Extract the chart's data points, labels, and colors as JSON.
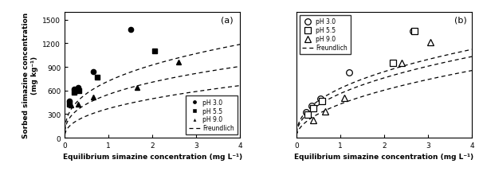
{
  "panel_a": {
    "pH3_x": [
      0.1,
      0.22,
      0.3,
      0.65,
      1.5
    ],
    "pH3_y": [
      470,
      620,
      640,
      840,
      1380
    ],
    "pH55_x": [
      0.1,
      0.22,
      0.32,
      0.75,
      2.05
    ],
    "pH55_y": [
      420,
      580,
      600,
      770,
      1100
    ],
    "pH9_x": [
      0.15,
      0.3,
      0.65,
      1.65,
      2.6
    ],
    "pH9_y": [
      410,
      430,
      520,
      640,
      960
    ],
    "freundlich_pH3_Kf": 720,
    "freundlich_pH3_n": 0.36,
    "freundlich_pH55_Kf": 550,
    "freundlich_pH55_n": 0.36,
    "freundlich_pH9_Kf": 370,
    "freundlich_pH9_n": 0.42,
    "xlim": [
      0,
      4
    ],
    "ylim": [
      0,
      1600
    ],
    "yticks": [
      0,
      300,
      600,
      900,
      1200,
      1500
    ],
    "xticks": [
      0,
      1,
      2,
      3,
      4
    ],
    "label": "(a)"
  },
  "panel_b": {
    "pH3_x": [
      0.22,
      0.35,
      0.55,
      1.2,
      2.65
    ],
    "pH3_y": [
      120,
      150,
      185,
      310,
      510
    ],
    "pH55_x": [
      0.25,
      0.38,
      0.58,
      2.2,
      2.7
    ],
    "pH55_y": [
      110,
      140,
      175,
      355,
      510
    ],
    "pH9_x": [
      0.38,
      0.65,
      1.1,
      2.4,
      3.05
    ],
    "pH9_y": [
      85,
      125,
      190,
      355,
      455
    ],
    "freundlich_pH3_Kf": 235,
    "freundlich_pH3_n": 0.42,
    "freundlich_pH55_Kf": 210,
    "freundlich_pH55_n": 0.44,
    "freundlich_pH9_Kf": 160,
    "freundlich_pH9_n": 0.5,
    "xlim": [
      0,
      4
    ],
    "ylim": [
      0,
      600
    ],
    "xticks": [
      0,
      1,
      2,
      3,
      4
    ],
    "label": "(b)"
  },
  "ylabel": "Sorbed simazine concentration\n(mg kg⁻¹)",
  "xlabel": "Equilibrium simazine concentration (mg L⁻¹)",
  "legend_pH3": "pH 3.0",
  "legend_pH55": "pH 5.5",
  "legend_pH9": "pH 9.0",
  "legend_freundlich": "Freundlich",
  "marker_color": "black",
  "line_color": "black"
}
